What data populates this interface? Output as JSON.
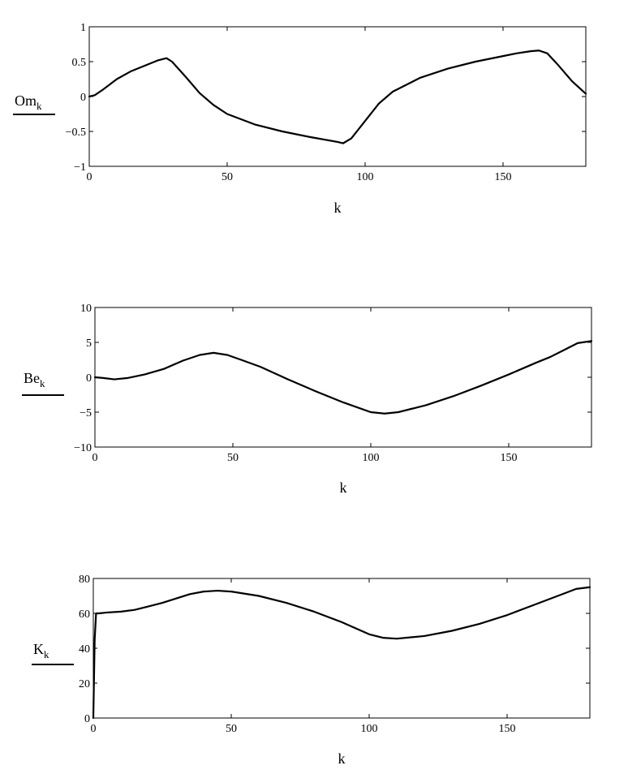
{
  "chart_data": [
    {
      "type": "line",
      "ylabel": "Om",
      "ylabel_subscript": "k",
      "xlabel": "k",
      "xlim": [
        0,
        180
      ],
      "ylim": [
        -1,
        1
      ],
      "xticks": [
        0,
        50,
        100,
        150
      ],
      "yticks": [
        1,
        0.5,
        0,
        -0.5,
        -1
      ],
      "grid": false,
      "series": [
        {
          "x": [
            0,
            2,
            5,
            10,
            15,
            20,
            25,
            28,
            30,
            35,
            40,
            45,
            50,
            60,
            70,
            80,
            90,
            92,
            95,
            100,
            105,
            110,
            120,
            130,
            140,
            150,
            155,
            160,
            163,
            166,
            170,
            175,
            180
          ],
          "values": [
            0,
            0.02,
            0.1,
            0.25,
            0.36,
            0.44,
            0.52,
            0.55,
            0.5,
            0.28,
            0.05,
            -0.12,
            -0.25,
            -0.4,
            -0.5,
            -0.58,
            -0.65,
            -0.67,
            -0.6,
            -0.35,
            -0.1,
            0.07,
            0.27,
            0.4,
            0.5,
            0.58,
            0.62,
            0.65,
            0.66,
            0.62,
            0.45,
            0.22,
            0.04
          ]
        }
      ]
    },
    {
      "type": "line",
      "ylabel": "Be",
      "ylabel_subscript": "k",
      "xlabel": "k",
      "xlim": [
        0,
        180
      ],
      "ylim": [
        -10,
        10
      ],
      "xticks": [
        0,
        50,
        100,
        150
      ],
      "yticks": [
        10,
        5,
        0,
        -5,
        -10
      ],
      "grid": false,
      "series": [
        {
          "x": [
            0,
            3,
            7,
            12,
            18,
            25,
            32,
            38,
            43,
            48,
            53,
            60,
            70,
            80,
            90,
            100,
            105,
            110,
            120,
            130,
            140,
            150,
            160,
            165,
            170,
            175,
            180
          ],
          "values": [
            0,
            -0.1,
            -0.3,
            -0.1,
            0.4,
            1.2,
            2.4,
            3.2,
            3.5,
            3.2,
            2.5,
            1.5,
            -0.3,
            -2,
            -3.6,
            -5,
            -5.2,
            -5,
            -4,
            -2.7,
            -1.2,
            0.4,
            2.1,
            2.9,
            3.9,
            4.9,
            5.2
          ]
        }
      ]
    },
    {
      "type": "line",
      "ylabel": "K",
      "ylabel_subscript": "k",
      "xlabel": "k",
      "xlim": [
        0,
        180
      ],
      "ylim": [
        0,
        80
      ],
      "xticks": [
        0,
        50,
        100,
        150
      ],
      "yticks": [
        80,
        60,
        40,
        20,
        0
      ],
      "grid": false,
      "series": [
        {
          "x": [
            0,
            0.5,
            1,
            2,
            5,
            10,
            15,
            20,
            25,
            30,
            35,
            40,
            45,
            50,
            60,
            70,
            80,
            90,
            95,
            100,
            105,
            110,
            120,
            130,
            140,
            150,
            160,
            170,
            175,
            180
          ],
          "values": [
            0,
            45,
            60,
            60,
            60.5,
            61,
            62,
            64,
            66,
            68.5,
            71,
            72.5,
            73,
            72.5,
            70,
            66,
            61,
            55,
            51.5,
            48,
            46,
            45.5,
            47,
            50,
            54,
            59,
            65,
            71,
            74,
            75
          ]
        }
      ]
    }
  ]
}
